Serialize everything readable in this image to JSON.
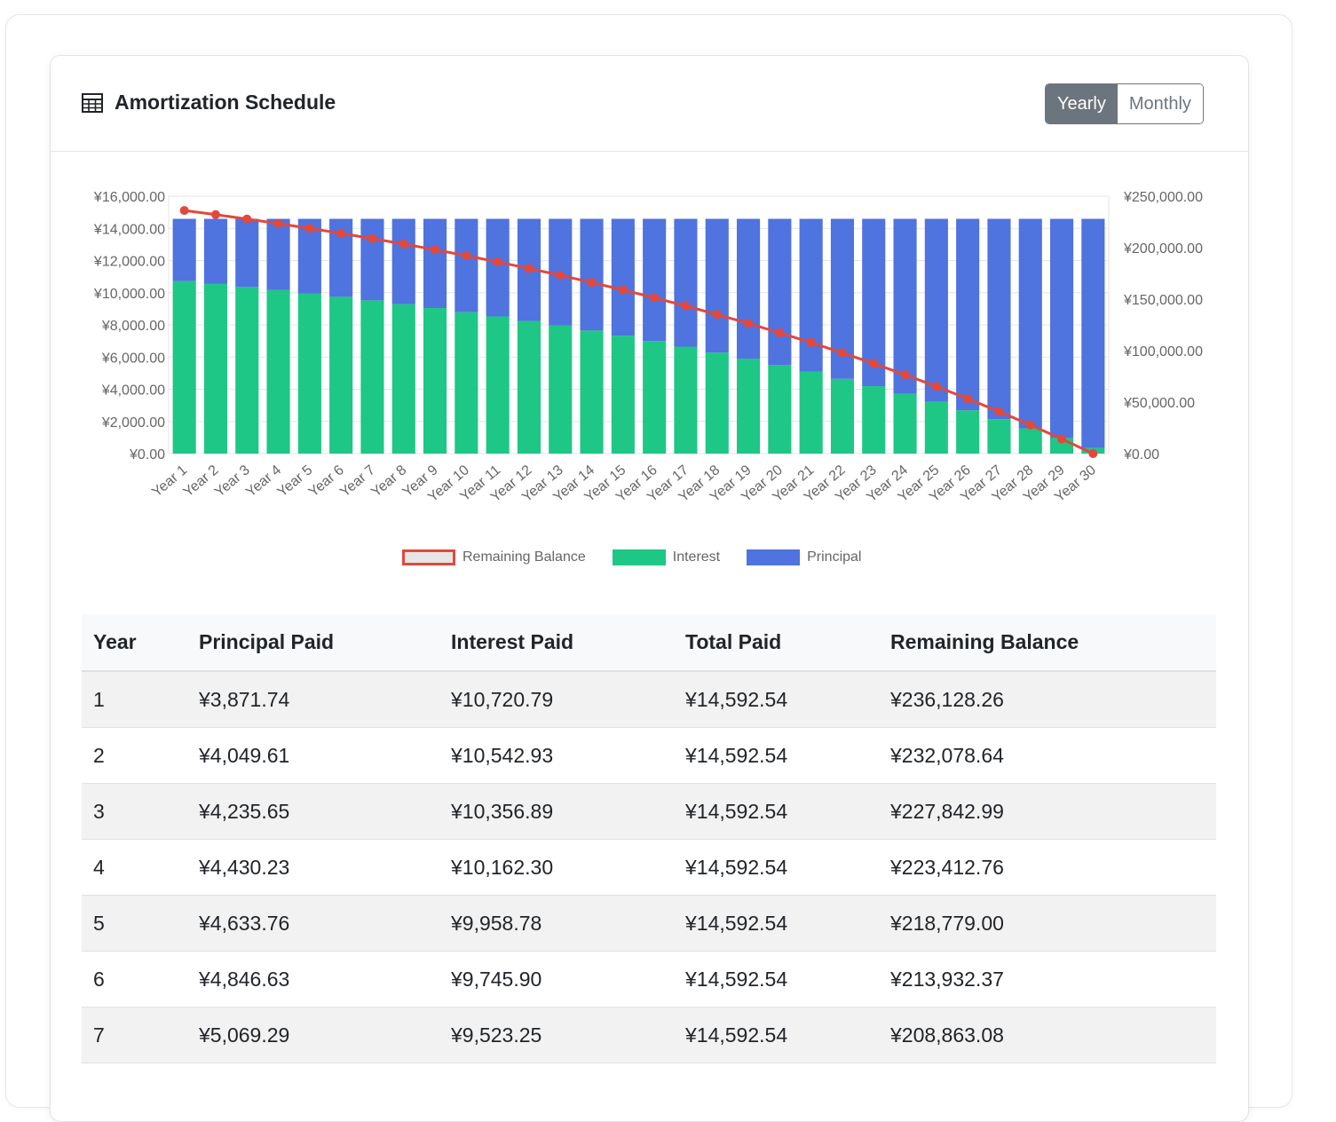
{
  "header": {
    "title": "Amortization Schedule",
    "icon": "table-icon",
    "toggle": {
      "yearly": "Yearly",
      "monthly": "Monthly",
      "active": "yearly"
    }
  },
  "chart_data": {
    "type": "bar",
    "stacked": true,
    "categories": [
      "Year 1",
      "Year 2",
      "Year 3",
      "Year 4",
      "Year 5",
      "Year 6",
      "Year 7",
      "Year 8",
      "Year 9",
      "Year 10",
      "Year 11",
      "Year 12",
      "Year 13",
      "Year 14",
      "Year 15",
      "Year 16",
      "Year 17",
      "Year 18",
      "Year 19",
      "Year 20",
      "Year 21",
      "Year 22",
      "Year 23",
      "Year 24",
      "Year 25",
      "Year 26",
      "Year 27",
      "Year 28",
      "Year 29",
      "Year 30"
    ],
    "series": [
      {
        "name": "Interest",
        "type": "bar",
        "axis": "left",
        "color": "#1ec785",
        "values": [
          10720.79,
          10542.93,
          10356.89,
          10162.3,
          9958.78,
          9745.9,
          9523.25,
          9290.3,
          9046.6,
          8791.8,
          8525.2,
          8246.4,
          7954.8,
          7649.7,
          7330.5,
          6996.8,
          6647.6,
          6282.5,
          5900.4,
          5500.9,
          5083.1,
          4646.1,
          4189.0,
          3710.9,
          3210.9,
          2687.9,
          2140.9,
          1568.7,
          970.3,
          344.4
        ]
      },
      {
        "name": "Principal",
        "type": "bar",
        "axis": "left",
        "color": "#4f73df",
        "values": [
          3871.74,
          4049.61,
          4235.65,
          4430.23,
          4633.76,
          4846.63,
          5069.29,
          5302.2,
          5546.0,
          5800.7,
          6067.3,
          6346.1,
          6637.7,
          6942.8,
          7262.0,
          7595.7,
          7944.9,
          8310.0,
          8692.1,
          9091.6,
          9509.4,
          9946.4,
          10403.5,
          10881.6,
          11381.6,
          11904.6,
          12451.6,
          13023.8,
          13622.2,
          14248.1
        ]
      },
      {
        "name": "Remaining Balance",
        "type": "line",
        "axis": "right",
        "color": "#e2483c",
        "values": [
          236128.26,
          232078.64,
          227842.99,
          223412.76,
          218779.0,
          213932.37,
          208863.08,
          203560.9,
          198014.9,
          192214.2,
          186146.9,
          179800.8,
          173163.1,
          166220.3,
          158958.3,
          151362.6,
          143417.7,
          135107.7,
          126415.6,
          117324.0,
          107814.6,
          97868.2,
          87464.7,
          76583.1,
          65201.5,
          53296.9,
          40845.3,
          27821.5,
          14199.3,
          0
        ]
      }
    ],
    "y_left": {
      "min": 0,
      "max": 16000,
      "ticks": [
        "¥0.00",
        "¥2,000.00",
        "¥4,000.00",
        "¥6,000.00",
        "¥8,000.00",
        "¥10,000.00",
        "¥12,000.00",
        "¥14,000.00",
        "¥16,000.00"
      ]
    },
    "y_right": {
      "min": 0,
      "max": 250000,
      "ticks": [
        "¥0.00",
        "¥50,000.00",
        "¥100,000.00",
        "¥150,000.00",
        "¥200,000.00",
        "¥250,000.00"
      ]
    },
    "legend_position": "bottom",
    "legend": [
      "Remaining Balance",
      "Interest",
      "Principal"
    ],
    "colors": {
      "interest": "#1ec785",
      "principal": "#4f73df",
      "balance": "#e2483c",
      "legend_balance_fill": "#e6e6e6"
    }
  },
  "table": {
    "headers": [
      "Year",
      "Principal Paid",
      "Interest Paid",
      "Total Paid",
      "Remaining Balance"
    ],
    "rows": [
      [
        "1",
        "¥3,871.74",
        "¥10,720.79",
        "¥14,592.54",
        "¥236,128.26"
      ],
      [
        "2",
        "¥4,049.61",
        "¥10,542.93",
        "¥14,592.54",
        "¥232,078.64"
      ],
      [
        "3",
        "¥4,235.65",
        "¥10,356.89",
        "¥14,592.54",
        "¥227,842.99"
      ],
      [
        "4",
        "¥4,430.23",
        "¥10,162.30",
        "¥14,592.54",
        "¥223,412.76"
      ],
      [
        "5",
        "¥4,633.76",
        "¥9,958.78",
        "¥14,592.54",
        "¥218,779.00"
      ],
      [
        "6",
        "¥4,846.63",
        "¥9,745.90",
        "¥14,592.54",
        "¥213,932.37"
      ],
      [
        "7",
        "¥5,069.29",
        "¥9,523.25",
        "¥14,592.54",
        "¥208,863.08"
      ]
    ]
  }
}
